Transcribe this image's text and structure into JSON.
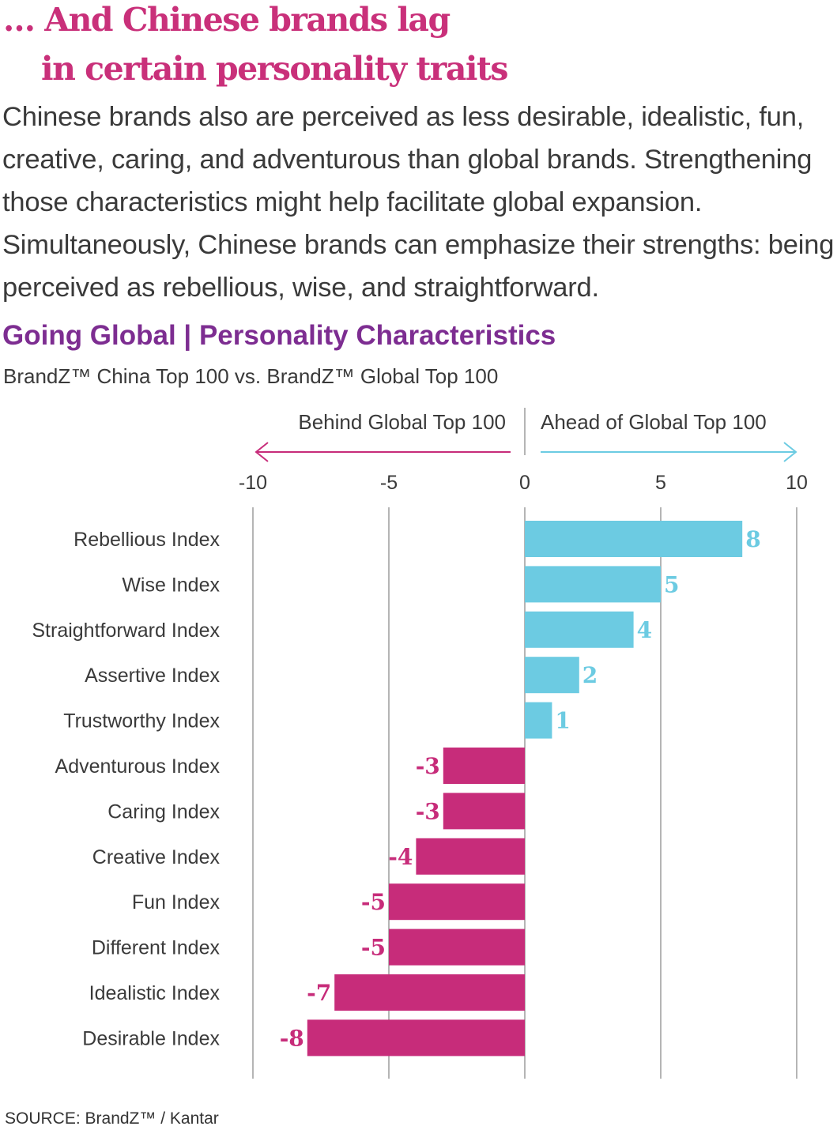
{
  "headline": {
    "line1": "… And Chinese brands lag",
    "line2": "in certain personality traits"
  },
  "intro": "Chinese brands also are perceived as less desirable, idealistic, fun, creative, caring, and adventurous than global brands. Strengthening those characteristics might help facilitate global expansion. Simultaneously, Chinese brands can emphasize their strengths: being perceived as rebellious, wise, and straightforward.",
  "source": "SOURCE: BrandZ™ / Kantar",
  "colors": {
    "headline": "#c9307a",
    "title": "#7d2d91",
    "positive": "#6ccbe2",
    "negative": "#c72c7a",
    "grid": "#b5b5b5"
  },
  "chart_data": {
    "type": "bar",
    "orientation": "horizontal",
    "title": "Going Global | Personality Characteristics",
    "subtitle": "BrandZ™ China Top 100 vs. BrandZ™ Global Top 100",
    "direction_labels": {
      "negative": "Behind Global Top 100",
      "positive": "Ahead of Global Top 100"
    },
    "xlim": [
      -10,
      10
    ],
    "xticks": [
      -10,
      -5,
      0,
      5,
      10
    ],
    "grid": true,
    "categories": [
      "Rebellious Index",
      "Wise Index",
      "Straightforward Index",
      "Assertive Index",
      "Trustworthy Index",
      "Adventurous Index",
      "Caring Index",
      "Creative Index",
      "Fun Index",
      "Different Index",
      "Idealistic Index",
      "Desirable Index"
    ],
    "values": [
      8,
      5,
      4,
      2,
      1,
      -3,
      -3,
      -4,
      -5,
      -5,
      -7,
      -8
    ]
  }
}
